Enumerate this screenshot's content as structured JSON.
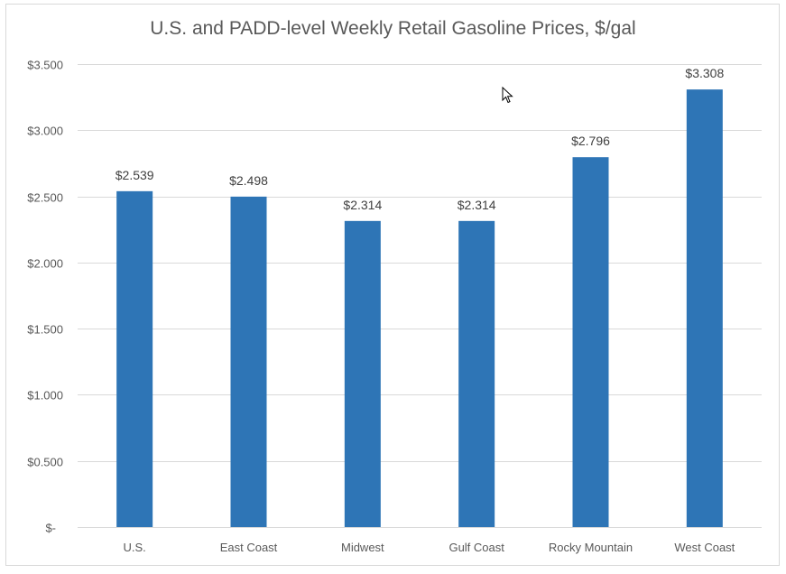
{
  "chart_data": {
    "type": "bar",
    "title": "U.S. and PADD-level Weekly Retail Gasoline Prices, $/gal",
    "xlabel": "",
    "ylabel": "",
    "categories": [
      "U.S.",
      "East Coast",
      "Midwest",
      "Gulf Coast",
      "Rocky Mountain",
      "West Coast"
    ],
    "values": [
      2.539,
      2.498,
      2.314,
      2.314,
      2.796,
      3.308
    ],
    "data_labels": [
      "$2.539",
      "$2.498",
      "$2.314",
      "$2.314",
      "$2.796",
      "$3.308"
    ],
    "ylim": [
      0,
      3.5
    ],
    "yticks": [
      0,
      0.5,
      1.0,
      1.5,
      2.0,
      2.5,
      3.0,
      3.5
    ],
    "ytick_labels": [
      "$-",
      "$0.500",
      "$1.000",
      "$1.500",
      "$2.000",
      "$2.500",
      "$3.000",
      "$3.500"
    ],
    "grid": true,
    "legend": "none",
    "bar_color": "#2E75B6",
    "grid_color": "#D9D9D9"
  }
}
